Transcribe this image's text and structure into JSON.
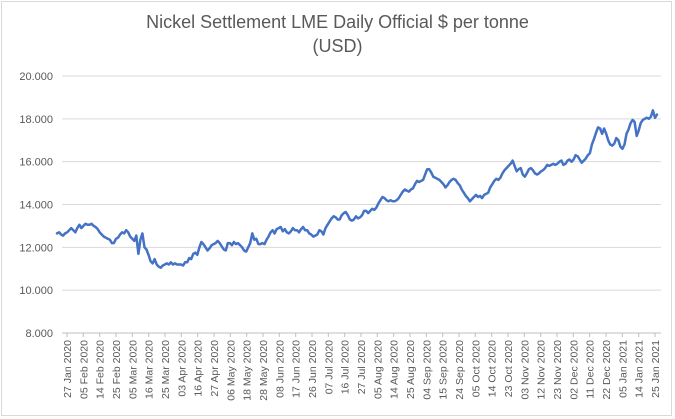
{
  "chart_data": {
    "type": "line",
    "title_line1": "Nickel Settlement LME Daily Official $ per tonne",
    "title_line2": "(USD)",
    "xlabel": "",
    "ylabel": "",
    "ylim": [
      8000,
      20000
    ],
    "y_ticks": [
      8000,
      10000,
      12000,
      14000,
      16000,
      18000,
      20000
    ],
    "y_tick_labels": [
      "8.000",
      "10.000",
      "12.000",
      "14.000",
      "16.000",
      "18.000",
      "20.000"
    ],
    "x_tick_labels": [
      "27 Jan 2020",
      "05 Feb 2020",
      "14 Feb 2020",
      "25 Feb 2020",
      "05 Mar 2020",
      "16 Mar 2020",
      "25 Mar 2020",
      "03 Apr 2020",
      "16 Apr 2020",
      "27 Apr 2020",
      "06 May 2020",
      "18 May 2020",
      "28 May 2020",
      "08 Jun 2020",
      "17 Jun 2020",
      "26 Jun 2020",
      "07 Jul 2020",
      "16 Jul 2020",
      "27 Jul 2020",
      "05 Aug 2020",
      "14 Aug 2020",
      "25 Aug 2020",
      "04 Sep 2020",
      "15 Sep 2020",
      "24 Sep 2020",
      "05 Oct 2020",
      "14 Oct 2020",
      "23 Oct 2020",
      "03 Nov 2020",
      "12 Nov 2020",
      "23 Nov 2020",
      "02 Dec 2020",
      "11 Dec 2020",
      "22 Dec 2020",
      "05 Jan 2021",
      "14 Jan 2021",
      "25 Jan 2021"
    ],
    "grid": true,
    "legend": "none",
    "line_color": "#4472c4",
    "series": [
      {
        "values": [
          12650,
          12700,
          12600,
          12550,
          12650,
          12700,
          12800,
          12900,
          12800,
          12700,
          12900,
          13050,
          12900,
          13000,
          13100,
          13050,
          13050,
          13100,
          13000,
          12950,
          12850,
          12700,
          12600,
          12500,
          12450,
          12400,
          12350,
          12200,
          12200,
          12400,
          12450,
          12600,
          12700,
          12650,
          12800,
          12700,
          12500,
          12400,
          12300,
          12550,
          11700,
          12350,
          12650,
          12000,
          11900,
          11650,
          11350,
          11250,
          11450,
          11200,
          11100,
          11050,
          11150,
          11200,
          11250,
          11200,
          11300,
          11200,
          11250,
          11200,
          11200,
          11200,
          11150,
          11300,
          11300,
          11500,
          11450,
          11700,
          11750,
          11650,
          12000,
          12250,
          12150,
          12000,
          11850,
          11950,
          12100,
          12150,
          12200,
          12300,
          12200,
          12050,
          11900,
          11850,
          12200,
          12200,
          12100,
          12250,
          12150,
          12200,
          12100,
          12000,
          11850,
          11800,
          12000,
          12200,
          12650,
          12350,
          12400,
          12150,
          12150,
          12200,
          12150,
          12350,
          12500,
          12700,
          12800,
          12650,
          12850,
          12900,
          12950,
          12750,
          12850,
          12700,
          12650,
          12750,
          12900,
          12800,
          12800,
          12700,
          12850,
          12950,
          12800,
          12800,
          12650,
          12600,
          12500,
          12550,
          12600,
          12800,
          12750,
          12600,
          12900,
          13050,
          13200,
          13350,
          13450,
          13400,
          13300,
          13300,
          13500,
          13600,
          13650,
          13500,
          13300,
          13250,
          13300,
          13450,
          13350,
          13400,
          13500,
          13700,
          13700,
          13600,
          13700,
          13800,
          13750,
          13850,
          14050,
          14200,
          14350,
          14300,
          14200,
          14150,
          14200,
          14150,
          14150,
          14200,
          14300,
          14450,
          14600,
          14700,
          14650,
          14600,
          14700,
          14750,
          14950,
          15100,
          15050,
          15100,
          15150,
          15400,
          15650,
          15650,
          15500,
          15300,
          15250,
          15200,
          15150,
          15050,
          14950,
          14800,
          14900,
          15050,
          15150,
          15200,
          15150,
          15000,
          14900,
          14700,
          14550,
          14400,
          14300,
          14150,
          14250,
          14350,
          14450,
          14350,
          14400,
          14300,
          14450,
          14500,
          14550,
          14800,
          14950,
          15100,
          15200,
          15150,
          15250,
          15450,
          15600,
          15700,
          15800,
          15900,
          16050,
          15800,
          15550,
          15650,
          15700,
          15400,
          15300,
          15450,
          15650,
          15700,
          15600,
          15450,
          15400,
          15450,
          15550,
          15600,
          15700,
          15850,
          15800,
          15850,
          15900,
          15850,
          15900,
          16000,
          16050,
          15850,
          15900,
          16050,
          16100,
          16000,
          16100,
          16300,
          16250,
          16100,
          15950,
          16050,
          16150,
          16300,
          16400,
          16800,
          17050,
          17350,
          17600,
          17550,
          17300,
          17550,
          17300,
          17000,
          16800,
          16750,
          16850,
          17100,
          17000,
          16700,
          16600,
          16800,
          17300,
          17500,
          17800,
          17950,
          17850,
          17200,
          17450,
          17800,
          17950,
          18000,
          18050,
          18000,
          18100,
          18400,
          18050,
          18200
        ]
      }
    ]
  }
}
